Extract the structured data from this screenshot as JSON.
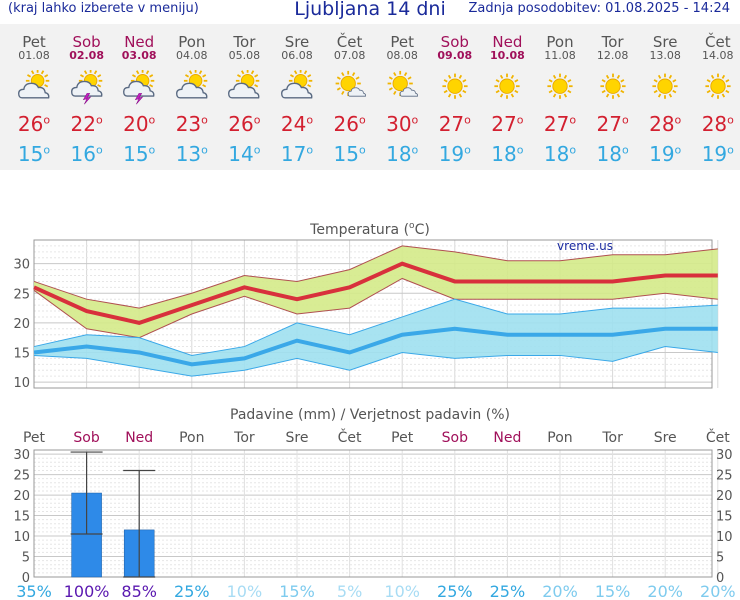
{
  "header": {
    "menu_hint": "(kraj lahko izberete v meniju)",
    "title": "Ljubljana 14 dni",
    "updated": "Zadnja posodobitev: 01.08.2025 - 14:24"
  },
  "degree_symbol": "o",
  "days": [
    {
      "name": "Pet",
      "date": "01.08",
      "weekend": false,
      "icon": "sun-cloud-icon",
      "tmax": "26",
      "tmin": "15"
    },
    {
      "name": "Sob",
      "date": "02.08",
      "weekend": true,
      "icon": "thunderstorm-icon",
      "tmax": "22",
      "tmin": "16"
    },
    {
      "name": "Ned",
      "date": "03.08",
      "weekend": true,
      "icon": "thunderstorm-icon",
      "tmax": "20",
      "tmin": "15"
    },
    {
      "name": "Pon",
      "date": "04.08",
      "weekend": false,
      "icon": "sun-cloud-icon",
      "tmax": "23",
      "tmin": "13"
    },
    {
      "name": "Tor",
      "date": "05.08",
      "weekend": false,
      "icon": "sun-cloud-icon",
      "tmax": "26",
      "tmin": "14"
    },
    {
      "name": "Sre",
      "date": "06.08",
      "weekend": false,
      "icon": "sun-cloud-icon",
      "tmax": "24",
      "tmin": "17"
    },
    {
      "name": "Čet",
      "date": "07.08",
      "weekend": false,
      "icon": "sun-small-cloud-icon",
      "tmax": "26",
      "tmin": "15"
    },
    {
      "name": "Pet",
      "date": "08.08",
      "weekend": false,
      "icon": "sun-small-cloud-icon",
      "tmax": "30",
      "tmin": "18"
    },
    {
      "name": "Sob",
      "date": "09.08",
      "weekend": true,
      "icon": "sun-icon",
      "tmax": "27",
      "tmin": "19"
    },
    {
      "name": "Ned",
      "date": "10.08",
      "weekend": true,
      "icon": "sun-icon",
      "tmax": "27",
      "tmin": "18"
    },
    {
      "name": "Pon",
      "date": "11.08",
      "weekend": false,
      "icon": "sun-icon",
      "tmax": "27",
      "tmin": "18"
    },
    {
      "name": "Tor",
      "date": "12.08",
      "weekend": false,
      "icon": "sun-icon",
      "tmax": "27",
      "tmin": "18"
    },
    {
      "name": "Sre",
      "date": "13.08",
      "weekend": false,
      "icon": "sun-icon",
      "tmax": "28",
      "tmin": "19"
    },
    {
      "name": "Čet",
      "date": "14.08",
      "weekend": false,
      "icon": "sun-icon",
      "tmax": "28",
      "tmin": "19"
    }
  ],
  "chart_data": [
    {
      "type": "line",
      "title": "Temperatura (°C)",
      "watermark": "vreme.us",
      "ylim": [
        9,
        34
      ],
      "yticks": [
        10,
        15,
        20,
        25,
        30
      ],
      "series": [
        {
          "values": [
            26,
            22,
            20,
            23,
            26,
            24,
            26,
            30,
            27,
            27,
            27,
            27,
            28,
            28
          ],
          "color": "#d8303c"
        },
        {
          "values": [
            27,
            24,
            22.5,
            25,
            28,
            27,
            29,
            33,
            32,
            30.5,
            30.5,
            31.5,
            31.5,
            32.5
          ],
          "color": "#c8e070"
        },
        {
          "values": [
            25.5,
            19,
            17.5,
            21.5,
            24.5,
            21.5,
            22.5,
            27.5,
            24,
            24,
            24,
            24,
            25,
            24
          ],
          "color": "#c8e070"
        },
        {
          "values": [
            15,
            16,
            15,
            13,
            14,
            17,
            15,
            18,
            19,
            18,
            18,
            18,
            19,
            19
          ],
          "color": "#3aa8e8"
        },
        {
          "values": [
            16,
            18,
            17.5,
            14.5,
            16,
            20,
            18,
            21,
            24,
            21.5,
            21.5,
            22.5,
            22.5,
            23
          ],
          "color": "#9ee0f0"
        },
        {
          "values": [
            14.5,
            14,
            12.5,
            11,
            12,
            14,
            12,
            15,
            14,
            14.5,
            14.5,
            13.5,
            16,
            15
          ],
          "color": "#9ee0f0"
        }
      ]
    },
    {
      "type": "bar",
      "title": "Padavine (mm) / Verjetnost padavin (%)",
      "ylim": [
        0,
        31
      ],
      "yticks": [
        0,
        5,
        10,
        15,
        20,
        25,
        30
      ],
      "categories": [
        "Pet",
        "Sob",
        "Ned",
        "Pon",
        "Tor",
        "Sre",
        "Čet",
        "Pet",
        "Sob",
        "Ned",
        "Pon",
        "Tor",
        "Sre",
        "Čet"
      ],
      "values": [
        0,
        20.5,
        11.5,
        0,
        0,
        0,
        0,
        0,
        0,
        0,
        0,
        0,
        0,
        0
      ],
      "error_low": [
        null,
        10.5,
        0,
        null,
        null,
        null,
        null,
        null,
        null,
        null,
        null,
        null,
        null,
        null
      ],
      "error_high": [
        null,
        30.5,
        26,
        null,
        null,
        null,
        null,
        null,
        null,
        null,
        null,
        null,
        null,
        null
      ],
      "probability": [
        "35%",
        "100%",
        "85%",
        "25%",
        "10%",
        "15%",
        "5%",
        "10%",
        "25%",
        "25%",
        "20%",
        "15%",
        "20%",
        "20%"
      ],
      "probability_colors": [
        "#33a8e0",
        "#5a18b0",
        "#5a18b0",
        "#33a8e0",
        "#a8dcf4",
        "#7ecbee",
        "#a8dcf4",
        "#a8dcf4",
        "#33a8e0",
        "#33a8e0",
        "#7ecbee",
        "#7ecbee",
        "#7ecbee",
        "#7ecbee"
      ],
      "bar_color": "#2e8ae8"
    }
  ]
}
